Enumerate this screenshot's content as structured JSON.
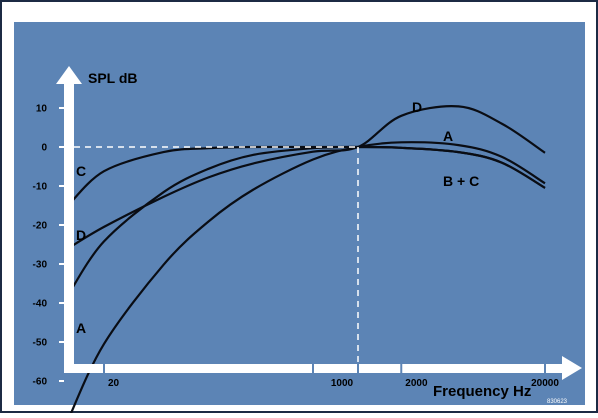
{
  "chart_data": {
    "type": "line",
    "title": "",
    "ylabel": "SPL dB",
    "xlabel": "Frequency Hz",
    "x_scale": "log",
    "xlim": [
      10,
      30000
    ],
    "ylim": [
      -70,
      15
    ],
    "y_ticks": [
      10,
      0,
      -10,
      -20,
      -30,
      -40,
      -50,
      -60
    ],
    "x_ticks": [
      {
        "value": 20,
        "label": "20"
      },
      {
        "value": 1000,
        "label": "1000"
      },
      {
        "value": 2000,
        "label": "2000"
      },
      {
        "value": 20000,
        "label": "20000"
      }
    ],
    "reference": {
      "x": 1000,
      "y": 0,
      "style": "dashed"
    },
    "grid": false,
    "series": [
      {
        "name": "A",
        "x": [
          10,
          20,
          50,
          100,
          200,
          500,
          1000,
          2000,
          5000,
          10000,
          20000
        ],
        "values": [
          -70,
          -50.5,
          -30.2,
          -19.1,
          -10.9,
          -3.2,
          0,
          1.2,
          0.5,
          -2.5,
          -9.3
        ]
      },
      {
        "name": "B + C",
        "x": [
          10,
          20,
          50,
          100,
          200,
          500,
          1000,
          2000,
          5000,
          10000,
          20000
        ],
        "values": [
          -38,
          -24.2,
          -11.6,
          -5.6,
          -2.0,
          -0.3,
          0,
          -0.2,
          -1.3,
          -4.0,
          -10.5
        ]
      },
      {
        "name": "C",
        "x": [
          10,
          20,
          50,
          100,
          200,
          500,
          1000,
          2000,
          5000,
          10000,
          20000
        ],
        "values": [
          -15,
          -6.2,
          -1.3,
          -0.3,
          0,
          0,
          0,
          -0.2,
          -1.3,
          -4.0,
          -10.5
        ]
      },
      {
        "name": "D",
        "x": [
          10,
          20,
          50,
          100,
          200,
          500,
          1000,
          2000,
          5000,
          10000,
          20000
        ],
        "values": [
          -26,
          -20.5,
          -12.8,
          -7.8,
          -4.2,
          -1.2,
          0,
          8.0,
          10.4,
          6.0,
          -1.5
        ]
      }
    ],
    "annotations": [
      {
        "text": "D",
        "series": "D"
      },
      {
        "text": "A",
        "series": "A"
      },
      {
        "text": "B + C",
        "series": "B + C"
      },
      {
        "text": "C",
        "series": "C"
      },
      {
        "text": "D",
        "series": "D"
      },
      {
        "text": "A",
        "series": "A"
      }
    ],
    "figure_code": "830623"
  },
  "colors": {
    "plot_background": "#5c84b5",
    "frame_background": "#ffffff",
    "frame_border": "#1c2a44",
    "curves": "#0a0d14",
    "axes": "#ffffff",
    "text": "#000000"
  }
}
